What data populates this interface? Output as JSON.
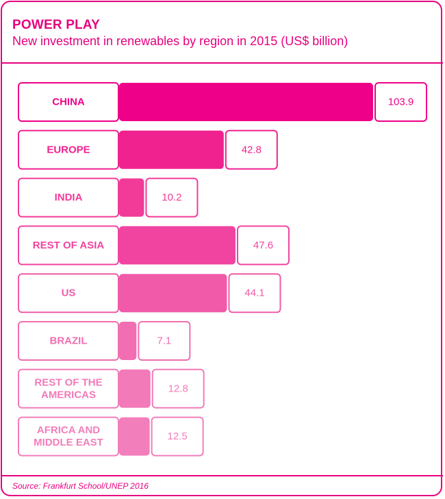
{
  "title": "POWER PLAY",
  "subtitle": "New investment in renewables by region in 2015 (US$ billion)",
  "source": "Source: Frankfurt School/UNEP 2016",
  "colors": {
    "accent": "#e6007e",
    "bars": [
      "#ee0088",
      "#f0228f",
      "#f23a98",
      "#f044a0",
      "#f05aa8",
      "#f06eb1",
      "#f27ab8",
      "#f27ebb"
    ]
  },
  "chart_data": {
    "type": "bar",
    "orientation": "horizontal",
    "categories": [
      [
        "CHINA"
      ],
      [
        "EUROPE"
      ],
      [
        "INDIA"
      ],
      [
        "REST OF ASIA"
      ],
      [
        "US"
      ],
      [
        "BRAZIL"
      ],
      [
        "REST OF THE",
        "AMERICAS"
      ],
      [
        "AFRICA AND",
        "MIDDLE EAST"
      ]
    ],
    "values": [
      103.9,
      42.8,
      10.2,
      47.6,
      44.1,
      7.1,
      12.8,
      12.5
    ],
    "value_labels": [
      "103.9",
      "42.8",
      "10.2",
      "47.6",
      "44.1",
      "7.1",
      "12.8",
      "12.5"
    ],
    "xlim": [
      0,
      103.9
    ],
    "grid": false,
    "legend": "none"
  }
}
